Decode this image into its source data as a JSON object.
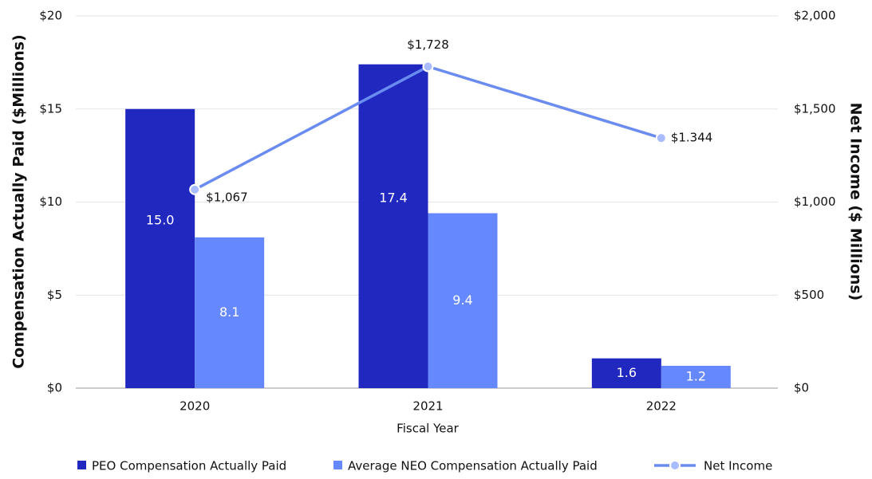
{
  "chart_data": {
    "type": "bar",
    "categories": [
      "2020",
      "2021",
      "2022"
    ],
    "x_label": "Fiscal Year",
    "y_label": "Compensation Actually Paid ($Millions)",
    "y2_label": "Net Income ($ Millions)",
    "ylim": [
      0,
      20
    ],
    "yticks": [
      {
        "value": 0,
        "label": "$0"
      },
      {
        "value": 5,
        "label": "$5"
      },
      {
        "value": 10,
        "label": "$10"
      },
      {
        "value": 15,
        "label": "$15"
      },
      {
        "value": 20,
        "label": "$20"
      }
    ],
    "y2lim": [
      0,
      2000
    ],
    "y2ticks": [
      {
        "value": 0,
        "label": "$0"
      },
      {
        "value": 500,
        "label": "$500"
      },
      {
        "value": 1000,
        "label": "$1,000"
      },
      {
        "value": 1500,
        "label": "$1,500"
      },
      {
        "value": 2000,
        "label": "$2,000"
      }
    ],
    "grid": true,
    "legend": "bottom",
    "series": [
      {
        "name": "PEO Compensation Actually Paid",
        "type": "bar",
        "color": "#2028c0",
        "values": [
          15.0,
          17.4,
          1.6
        ],
        "value_labels": [
          "15.0",
          "17.4",
          "1.6"
        ]
      },
      {
        "name": "Average NEO Compensation Actually Paid",
        "type": "bar",
        "color": "#6688ff",
        "values": [
          8.1,
          9.4,
          1.2
        ],
        "value_labels": [
          "8.1",
          "9.4",
          "1.2"
        ]
      },
      {
        "name": "Net Income",
        "type": "line",
        "axis": "y2",
        "color": "#6a8cf0",
        "values": [
          1067,
          1728,
          1344
        ],
        "value_labels": [
          "$1,067",
          "$1,728",
          "$1.344"
        ]
      }
    ]
  }
}
